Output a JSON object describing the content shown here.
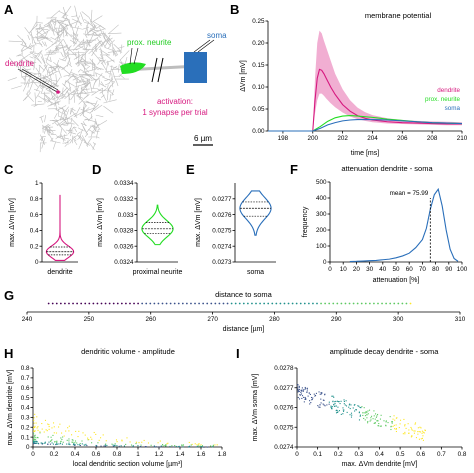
{
  "panels": {
    "A": {
      "label": "A",
      "labels": {
        "dendrite": "dendrite",
        "prox_neurite": "prox. neurite",
        "soma": "soma",
        "activation_line1": "activation:",
        "activation_line2": "1 synapse per trial",
        "scalebar": "6 µm"
      },
      "colors": {
        "dendrite": "#d6187f",
        "prox_neurite": "#22dd22",
        "soma": "#2a6fba",
        "neuron": "#bdbdbd"
      }
    },
    "B": {
      "label": "B"
    },
    "C": {
      "label": "C"
    },
    "D": {
      "label": "D"
    },
    "E": {
      "label": "E"
    },
    "F": {
      "label": "F"
    },
    "G": {
      "label": "G"
    },
    "H": {
      "label": "H"
    },
    "I": {
      "label": "I"
    }
  },
  "chart_data": [
    {
      "id": "B",
      "type": "line",
      "title": "membrane potential",
      "xlabel": "time [ms]",
      "ylabel": "ΔVm [mV]",
      "xlim": [
        197,
        210
      ],
      "ylim": [
        0,
        0.25
      ],
      "xticks": [
        198,
        200,
        202,
        204,
        206,
        208,
        210
      ],
      "yticks": [
        0,
        0.05,
        0.1,
        0.15,
        0.2,
        0.25
      ],
      "ytick_labels": [
        "0.00",
        "0.05",
        "0.10",
        "0.15",
        "0.20",
        "0.25"
      ],
      "legend_position": "bottom-right",
      "series": [
        {
          "name": "dendrite",
          "color": "#d6187f",
          "x": [
            197,
            200,
            200.15,
            200.3,
            200.45,
            200.6,
            200.75,
            200.9,
            201.2,
            201.5,
            202,
            202.5,
            203,
            203.5,
            204,
            205,
            206,
            207,
            208,
            209,
            210
          ],
          "y": [
            0,
            0,
            0.07,
            0.12,
            0.14,
            0.138,
            0.13,
            0.12,
            0.1,
            0.083,
            0.06,
            0.045,
            0.035,
            0.029,
            0.025,
            0.021,
            0.019,
            0.018,
            0.017,
            0.016,
            0.016
          ],
          "upper": [
            0,
            0,
            0.12,
            0.2,
            0.228,
            0.222,
            0.205,
            0.19,
            0.16,
            0.13,
            0.095,
            0.07,
            0.053,
            0.043,
            0.036,
            0.029,
            0.025,
            0.023,
            0.022,
            0.021,
            0.02
          ],
          "lower": [
            0,
            0,
            0.04,
            0.07,
            0.085,
            0.085,
            0.08,
            0.074,
            0.063,
            0.054,
            0.042,
            0.033,
            0.027,
            0.023,
            0.02,
            0.017,
            0.016,
            0.015,
            0.014,
            0.013,
            0.013
          ]
        },
        {
          "name": "prox. neurite",
          "color": "#22dd22",
          "x": [
            197,
            200,
            200.5,
            201,
            201.5,
            202,
            202.5,
            203,
            204,
            205,
            206,
            207,
            208,
            209,
            210
          ],
          "y": [
            0,
            0,
            0.01,
            0.022,
            0.03,
            0.034,
            0.035,
            0.034,
            0.031,
            0.027,
            0.024,
            0.021,
            0.019,
            0.018,
            0.017
          ]
        },
        {
          "name": "soma",
          "color": "#2a6fba",
          "x": [
            197,
            200,
            200.5,
            201,
            201.5,
            202,
            202.5,
            203,
            204,
            205,
            206,
            207,
            208,
            209,
            210
          ],
          "y": [
            0,
            0,
            0.006,
            0.014,
            0.019,
            0.023,
            0.025,
            0.026,
            0.026,
            0.025,
            0.023,
            0.021,
            0.019,
            0.018,
            0.017
          ]
        }
      ]
    },
    {
      "id": "C",
      "type": "violin",
      "xlabel": "dendrite",
      "ylabel": "max. ΔVm [mV]",
      "ylim": [
        0,
        1
      ],
      "yticks": [
        0,
        0.2,
        0.4,
        0.6,
        0.8,
        1
      ],
      "ytick_labels": [
        "0",
        "0.2",
        "0.4",
        "0.6",
        "0.8",
        "1"
      ],
      "color": "#d6187f",
      "median": 0.13,
      "q1": 0.09,
      "q3": 0.19,
      "min": 0.02,
      "max": 0.85
    },
    {
      "id": "D",
      "type": "violin",
      "xlabel": "proximal neurite",
      "ylabel": "max. ΔVm [mV]",
      "ylim": [
        0.0324,
        0.0334
      ],
      "yticks": [
        0.0324,
        0.0326,
        0.0328,
        0.033,
        0.0332,
        0.0334
      ],
      "ytick_labels": [
        "0.0324",
        "0.0326",
        "0.0328",
        "0.033",
        "0.0332",
        "0.0334"
      ],
      "color": "#22dd22",
      "median": 0.03282,
      "q1": 0.03276,
      "q3": 0.0329,
      "min": 0.03262,
      "max": 0.03312
    },
    {
      "id": "E",
      "type": "violin",
      "xlabel": "soma",
      "ylabel": "max. ΔVm [mV]",
      "ylim": [
        0.0273,
        0.0278
      ],
      "yticks": [
        0.0273,
        0.0274,
        0.0275,
        0.0276,
        0.0277
      ],
      "ytick_labels": [
        "0.0273",
        "0.0274",
        "0.0275",
        "0.0276",
        "0.0277"
      ],
      "color": "#2a6fba",
      "median": 0.02764,
      "q1": 0.02759,
      "q3": 0.02768,
      "min": 0.02747,
      "max": 0.02775
    },
    {
      "id": "F",
      "type": "line",
      "title": "attenuation dendrite - soma",
      "xlabel": "attenuation [%]",
      "ylabel": "frequency",
      "xlim": [
        0,
        100
      ],
      "ylim": [
        0,
        500
      ],
      "xticks": [
        0,
        10,
        20,
        30,
        40,
        50,
        60,
        70,
        80,
        90,
        100
      ],
      "yticks": [
        0,
        100,
        200,
        300,
        400,
        500
      ],
      "annotation": "mean = 75.99",
      "mean": 75.99,
      "color": "#2a6fba",
      "x": [
        15,
        20,
        25,
        30,
        35,
        40,
        45,
        50,
        55,
        60,
        65,
        70,
        73,
        76,
        79,
        82,
        85,
        88,
        91,
        94,
        97
      ],
      "y": [
        3,
        4,
        6,
        8,
        10,
        14,
        18,
        26,
        38,
        55,
        90,
        140,
        210,
        330,
        420,
        455,
        350,
        200,
        80,
        22,
        4
      ]
    },
    {
      "id": "G",
      "type": "colorbar-scatter",
      "title": "distance to soma",
      "xlabel": "distance [µm]",
      "xlim": [
        240,
        310
      ],
      "xticks": [
        240,
        250,
        260,
        270,
        280,
        290,
        300,
        310
      ],
      "colormap": [
        "#440154",
        "#3b528b",
        "#21918c",
        "#5ec962",
        "#fde725"
      ],
      "range": [
        243.5,
        302
      ]
    },
    {
      "id": "H",
      "type": "scatter",
      "title": "dendritic volume - amplitude",
      "xlabel": "local dendritic section volume [µm³]",
      "ylabel": "max. ΔVm dendrite [mV]",
      "xlim": [
        0,
        1.8
      ],
      "ylim": [
        0,
        0.8
      ],
      "xticks": [
        0,
        0.2,
        0.4,
        0.6,
        0.8,
        1,
        1.2,
        1.4,
        1.6,
        1.8
      ],
      "yticks": [
        0,
        0.1,
        0.2,
        0.3,
        0.4,
        0.5,
        0.6,
        0.7,
        0.8
      ]
    },
    {
      "id": "I",
      "type": "scatter",
      "title": "amplitude decay dendrite - soma",
      "xlabel": "max. ΔVm dendrite [mV]",
      "ylabel": "max. ΔVm soma [mV]",
      "xlim": [
        0,
        0.8
      ],
      "ylim": [
        0.0274,
        0.0278
      ],
      "xticks": [
        0,
        0.1,
        0.2,
        0.3,
        0.4,
        0.5,
        0.6,
        0.7,
        0.8
      ],
      "yticks": [
        0.0274,
        0.0275,
        0.0276,
        0.0277,
        0.0278
      ],
      "ytick_labels": [
        "0.0274",
        "0.0275",
        "0.0276",
        "0.0277",
        "0.0278"
      ]
    }
  ]
}
